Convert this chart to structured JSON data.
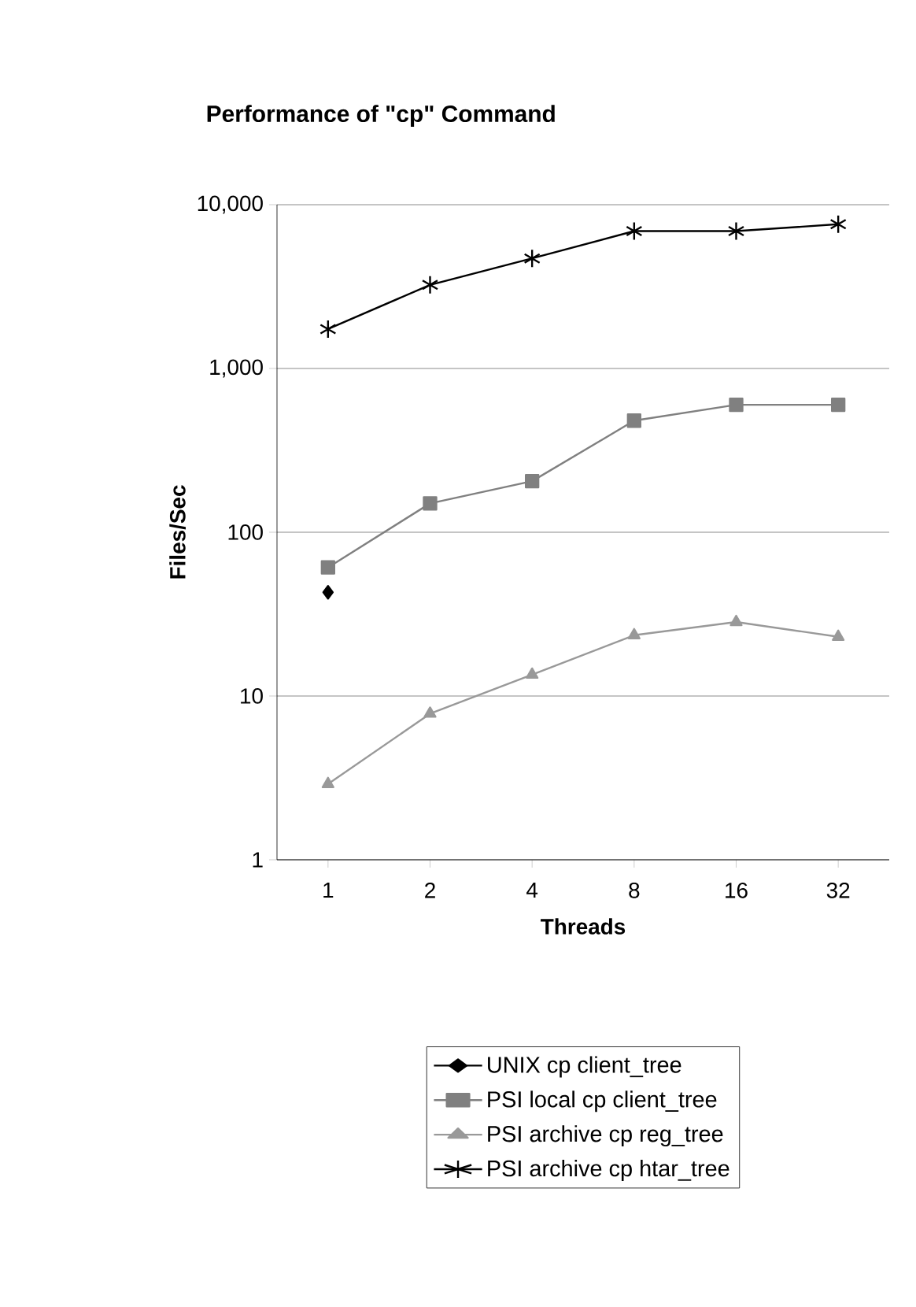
{
  "chart_data": {
    "type": "line",
    "title": "Performance of \"cp\" Command",
    "xlabel": "Threads",
    "ylabel": "Files/Sec",
    "categories": [
      "1",
      "2",
      "4",
      "8",
      "16",
      "32"
    ],
    "series": [
      {
        "name": "UNIX cp client_tree",
        "color": "#000000",
        "marker": "diamond",
        "values": [
          43,
          null,
          null,
          null,
          null,
          null
        ]
      },
      {
        "name": "PSI local cp client_tree",
        "color": "#808080",
        "marker": "square",
        "values": [
          61,
          150,
          205,
          480,
          600,
          600
        ]
      },
      {
        "name": "PSI archive cp reg_tree",
        "color": "#999999",
        "marker": "triangle",
        "values": [
          2.9,
          7.8,
          13.5,
          23.5,
          28.3,
          23
        ]
      },
      {
        "name": "PSI archive cp htar_tree",
        "color": "#000000",
        "marker": "cross",
        "values": [
          1740,
          3240,
          4700,
          6900,
          6900,
          7600
        ]
      }
    ],
    "log": "y",
    "ylim": [
      1,
      10000
    ],
    "yticks": [
      1,
      10,
      100,
      {
        "value": 1000,
        "label": "1,000"
      },
      {
        "value": 10000,
        "label": "10,000"
      }
    ],
    "grid": "y",
    "legend": "bottom",
    "line_style": "solid"
  }
}
